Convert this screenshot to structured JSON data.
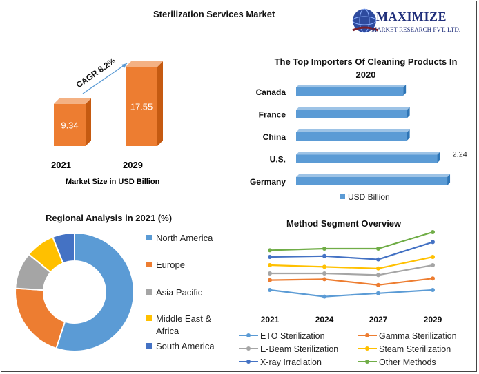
{
  "header": {
    "title": "Sterilization Services Market"
  },
  "logo": {
    "line1": "MAXIMIZE",
    "line2": "MARKET RESEARCH PVT. LTD."
  },
  "colors": {
    "orange": "#ED7D31",
    "blue": "#5B9BD5",
    "gray": "#A5A5A5",
    "yellow": "#FFC000",
    "darkblue": "#4472C4",
    "green": "#70AD47"
  },
  "chart_data": [
    {
      "type": "bar",
      "title": "Sterilization Services Market",
      "categories": [
        "2021",
        "2029"
      ],
      "values": [
        9.34,
        17.55
      ],
      "value_labels": [
        "9.34",
        "17.55"
      ],
      "xlabel": "Market Size in USD Billion",
      "annotation": "CAGR 8.2%"
    },
    {
      "type": "bar",
      "orientation": "horizontal",
      "title": "The Top Importers Of Cleaning Products In 2020",
      "categories": [
        "Canada",
        "France",
        "China",
        "U.S.",
        "Germany"
      ],
      "values": [
        1.7,
        1.76,
        1.76,
        2.24,
        2.4
      ],
      "value_labels": {
        "U.S.": "2.24"
      },
      "legend": [
        "USD Billion"
      ],
      "xlim": [
        0,
        2.6
      ]
    },
    {
      "type": "pie",
      "title": "Regional Analysis in 2021 (%)",
      "labels": [
        "North America",
        "Europe",
        "Asia Pacific",
        "Middle East & Africa",
        "South America"
      ],
      "values": [
        55,
        21,
        10,
        8,
        6
      ]
    },
    {
      "type": "line",
      "title": "Method Segment Overview",
      "categories": [
        "2021",
        "2024",
        "2027",
        "2029"
      ],
      "series": [
        {
          "name": "ETO Sterilization",
          "values": [
            1.0,
            0.6,
            0.8,
            1.0
          ]
        },
        {
          "name": "Gamma Sterilization",
          "values": [
            1.6,
            1.65,
            1.3,
            1.7
          ]
        },
        {
          "name": "E-Beam Sterilization",
          "values": [
            2.0,
            2.0,
            1.9,
            2.5
          ]
        },
        {
          "name": "Steam Sterilization",
          "values": [
            2.5,
            2.4,
            2.3,
            3.0
          ]
        },
        {
          "name": "X-ray Irradiation",
          "values": [
            3.0,
            3.05,
            2.85,
            3.9
          ]
        },
        {
          "name": "Other Methods",
          "values": [
            3.4,
            3.5,
            3.5,
            4.5
          ]
        }
      ],
      "ylim": [
        0,
        5
      ]
    }
  ]
}
